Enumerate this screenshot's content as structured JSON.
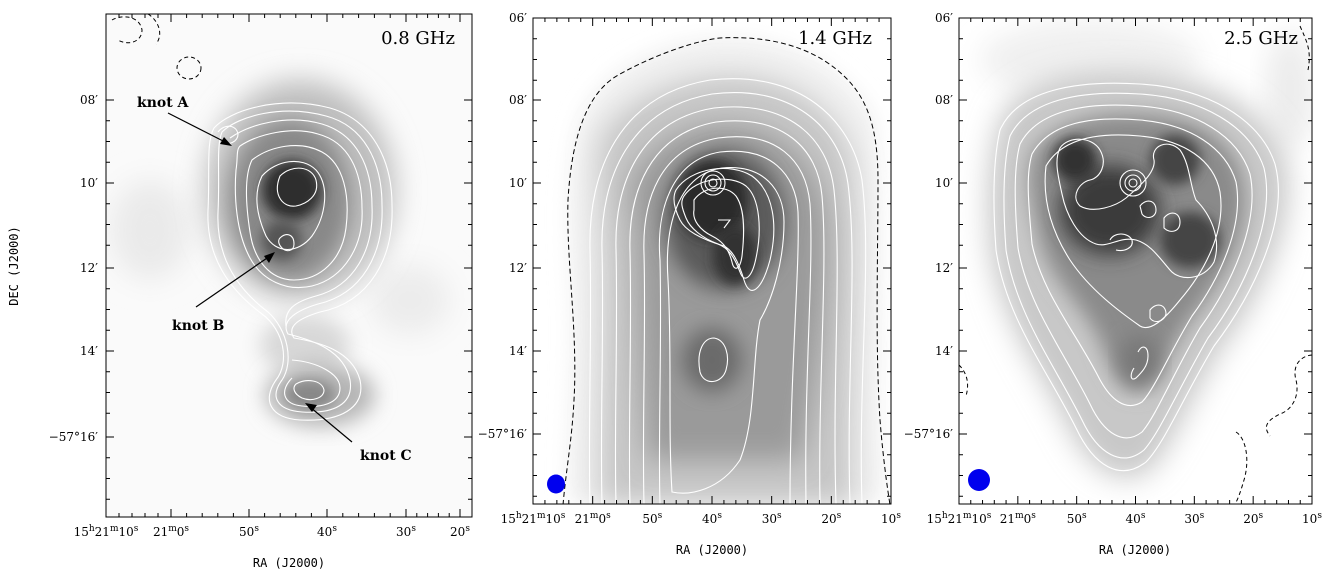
{
  "chart_data": [
    {
      "type": "heatmap",
      "panel": "left",
      "frequency_label": "0.8 GHz",
      "xlabel": "RA (J2000)",
      "ylabel": "DEC (J2000)",
      "x_tick_labels": [
        {
          "h": "15",
          "hs": "h",
          "m": "21",
          "ms": "m",
          "s": "10",
          "ss": "s"
        },
        {
          "h": "",
          "hs": "",
          "m": "21",
          "ms": "m",
          "s": "0",
          "ss": "s"
        },
        {
          "h": "",
          "hs": "",
          "m": "",
          "ms": "",
          "s": "50",
          "ss": "s"
        },
        {
          "h": "",
          "hs": "",
          "m": "",
          "ms": "",
          "s": "40",
          "ss": "s"
        },
        {
          "h": "",
          "hs": "",
          "m": "",
          "ms": "",
          "s": "30",
          "ss": "s"
        },
        {
          "h": "",
          "hs": "",
          "m": "",
          "ms": "",
          "s": "20",
          "ss": "s"
        }
      ],
      "y_tick_labels": [
        "08′",
        "10′",
        "12′",
        "14′",
        "−57°16′"
      ],
      "annotations": [
        "knot A",
        "knot B",
        "knot C"
      ],
      "beam_shown": false
    },
    {
      "type": "heatmap",
      "panel": "middle",
      "frequency_label": "1.4 GHz",
      "xlabel": "RA (J2000)",
      "ylabel": "",
      "x_tick_labels": [
        {
          "h": "15",
          "hs": "h",
          "m": "21",
          "ms": "m",
          "s": "10",
          "ss": "s"
        },
        {
          "h": "",
          "hs": "",
          "m": "21",
          "ms": "m",
          "s": "0",
          "ss": "s"
        },
        {
          "h": "",
          "hs": "",
          "m": "",
          "ms": "",
          "s": "50",
          "ss": "s"
        },
        {
          "h": "",
          "hs": "",
          "m": "",
          "ms": "",
          "s": "40",
          "ss": "s"
        },
        {
          "h": "",
          "hs": "",
          "m": "",
          "ms": "",
          "s": "30",
          "ss": "s"
        },
        {
          "h": "",
          "hs": "",
          "m": "",
          "ms": "",
          "s": "20",
          "ss": "s"
        },
        {
          "h": "",
          "hs": "",
          "m": "",
          "ms": "",
          "s": "10",
          "ss": "s"
        }
      ],
      "y_tick_labels": [
        "06′",
        "08′",
        "10′",
        "12′",
        "14′",
        "−57°16′"
      ],
      "beam_shown": true
    },
    {
      "type": "heatmap",
      "panel": "right",
      "frequency_label": "2.5 GHz",
      "xlabel": "RA (J2000)",
      "ylabel": "",
      "x_tick_labels": [
        {
          "h": "15",
          "hs": "h",
          "m": "21",
          "ms": "m",
          "s": "10",
          "ss": "s"
        },
        {
          "h": "",
          "hs": "",
          "m": "21",
          "ms": "m",
          "s": "0",
          "ss": "s"
        },
        {
          "h": "",
          "hs": "",
          "m": "",
          "ms": "",
          "s": "50",
          "ss": "s"
        },
        {
          "h": "",
          "hs": "",
          "m": "",
          "ms": "",
          "s": "40",
          "ss": "s"
        },
        {
          "h": "",
          "hs": "",
          "m": "",
          "ms": "",
          "s": "30",
          "ss": "s"
        },
        {
          "h": "",
          "hs": "",
          "m": "",
          "ms": "",
          "s": "20",
          "ss": "s"
        },
        {
          "h": "",
          "hs": "",
          "m": "",
          "ms": "",
          "s": "10",
          "ss": "s"
        }
      ],
      "y_tick_labels": [
        "06′",
        "08′",
        "10′",
        "12′",
        "14′",
        "−57°16′"
      ],
      "beam_shown": true
    }
  ],
  "colors": {
    "background": "#ffffff",
    "beam": "#0000ee",
    "contour": "#ffffff",
    "axis": "#000000"
  }
}
